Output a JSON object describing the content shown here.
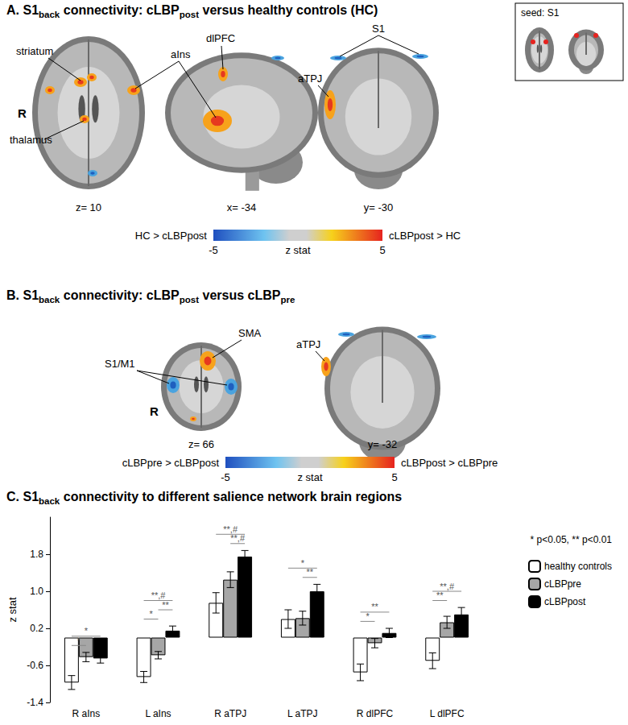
{
  "panel_a": {
    "label": "A.",
    "title": [
      {
        "text": "S1"
      },
      {
        "text": "back",
        "sub": true
      },
      {
        "text": " connectivity: cLBP"
      },
      {
        "text": "post",
        "sub": true
      },
      {
        "text": " versus healthy controls (HC)"
      }
    ],
    "inset": "seed: S1",
    "orientation_marker": "R",
    "labels": [
      "striatum",
      "thalamus",
      "aIns",
      "dlPFC",
      "aTPJ",
      "S1"
    ],
    "slice_coordinates": [
      "z= 10",
      "x= -34",
      "y= -30"
    ],
    "colorbar": {
      "left_text": "HC > cLBPpost",
      "right_text": "cLBPpost > HC",
      "label": "z stat",
      "min": -5,
      "max": 5
    }
  },
  "panel_b": {
    "label": "B.",
    "title": [
      {
        "text": "S1"
      },
      {
        "text": "back",
        "sub": true
      },
      {
        "text": " connectivity: cLBP"
      },
      {
        "text": "post",
        "sub": true
      },
      {
        "text": " versus cLBP"
      },
      {
        "text": "pre",
        "sub": true
      }
    ],
    "orientation_marker": "R",
    "labels": [
      "S1/M1",
      "SMA",
      "aTPJ"
    ],
    "slice_coordinates": [
      "z= 66",
      "y= -32"
    ],
    "colorbar": {
      "left_text": "cLBPpre > cLBPpost",
      "right_text": "cLBPpost > cLBPpre",
      "label": "z stat",
      "min": -5,
      "max": 5
    }
  },
  "chart_data": {
    "type": "bar",
    "panel_label": "C.",
    "title": [
      {
        "text": "S1"
      },
      {
        "text": "back",
        "sub": true
      },
      {
        "text": " connectivity to different salience network brain regions"
      }
    ],
    "y_label": "z stat",
    "categories": [
      "R aIns",
      "L aIns",
      "R aTPJ",
      "L aTPJ",
      "R dlPFC",
      "L dlPFC"
    ],
    "series": [
      {
        "name": "healthy controls",
        "color": "#ffffff",
        "values": [
          -0.97,
          -0.85,
          0.75,
          0.4,
          -0.75,
          -0.5
        ],
        "errors": [
          0.15,
          0.12,
          0.22,
          0.2,
          0.18,
          0.17
        ]
      },
      {
        "name": "cLBPpre",
        "color": "#a6a6a6",
        "values": [
          -0.42,
          -0.38,
          1.25,
          0.42,
          -0.12,
          0.33
        ],
        "errors": [
          0.1,
          0.08,
          0.17,
          0.15,
          0.1,
          0.13
        ]
      },
      {
        "name": "cLBPpost",
        "color": "#000000",
        "values": [
          -0.45,
          0.15,
          1.75,
          1.0,
          0.1,
          0.5
        ],
        "errors": [
          0.1,
          0.1,
          0.13,
          0.15,
          0.1,
          0.15
        ]
      }
    ],
    "ylim": [
      -1.4,
      2.6
    ],
    "yticks": [
      -1.4,
      -0.6,
      0.2,
      {
        "value": 1,
        "label": "1.0"
      },
      1.8
    ],
    "grid": false,
    "legend": "right",
    "significance_note": "* p<0.05, ** p<0.01",
    "annotations": [
      {
        "category": "R aIns",
        "from": "healthy controls",
        "to": "cLBPpre",
        "label": "*"
      },
      {
        "category": "R aIns",
        "from": "healthy controls",
        "to": "cLBPpost",
        "label": "*"
      },
      {
        "category": "L aIns",
        "from": "healthy controls",
        "to": "cLBPpre",
        "label": "*"
      },
      {
        "category": "L aIns",
        "from": "cLBPpre",
        "to": "cLBPpost",
        "label": "**"
      },
      {
        "category": "L aIns",
        "from": "healthy controls",
        "to": "cLBPpost",
        "label": "**,#"
      },
      {
        "category": "R aTPJ",
        "from": "cLBPpre",
        "to": "cLBPpost",
        "label": "**,#"
      },
      {
        "category": "R aTPJ",
        "from": "healthy controls",
        "to": "cLBPpost",
        "label": "**,#"
      },
      {
        "category": "L aTPJ",
        "from": "cLBPpre",
        "to": "cLBPpost",
        "label": "**"
      },
      {
        "category": "L aTPJ",
        "from": "healthy controls",
        "to": "cLBPpost",
        "label": "*"
      },
      {
        "category": "R dlPFC",
        "from": "healthy controls",
        "to": "cLBPpre",
        "label": "*"
      },
      {
        "category": "R dlPFC",
        "from": "healthy controls",
        "to": "cLBPpost",
        "label": "**"
      },
      {
        "category": "L dlPFC",
        "from": "healthy controls",
        "to": "cLBPpre",
        "label": "**"
      },
      {
        "category": "L dlPFC",
        "from": "healthy controls",
        "to": "cLBPpost",
        "label": "**,#"
      }
    ]
  }
}
